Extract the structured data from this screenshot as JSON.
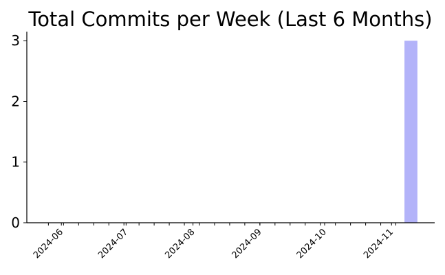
{
  "chart_data": {
    "type": "bar",
    "title": "Total Commits per Week (Last 6 Months)",
    "xlabel": "",
    "ylabel": "",
    "ylim": [
      0,
      3.15
    ],
    "y_ticks": [
      0,
      1,
      2,
      3
    ],
    "x_tick_labels": [
      "2024-06",
      "2024-07",
      "2024-08",
      "2024-09",
      "2024-10",
      "2024-11"
    ],
    "x_tick_dates": [
      "2024-06-01",
      "2024-07-01",
      "2024-08-01",
      "2024-09-01",
      "2024-10-01",
      "2024-11-01"
    ],
    "x_range": [
      "2024-05-16",
      "2024-11-21"
    ],
    "minor_tick_dates": [
      "2024-05-26",
      "2024-06-02",
      "2024-06-09",
      "2024-06-16",
      "2024-06-23",
      "2024-06-30",
      "2024-07-07",
      "2024-07-14",
      "2024-07-21",
      "2024-07-28",
      "2024-08-04",
      "2024-08-11",
      "2024-08-18",
      "2024-08-25",
      "2024-09-01",
      "2024-09-08",
      "2024-09-15",
      "2024-09-22",
      "2024-09-29",
      "2024-10-06",
      "2024-10-13",
      "2024-10-20",
      "2024-10-27",
      "2024-11-03"
    ],
    "series": [
      {
        "color": "#b3b3f9",
        "points": [
          {
            "week": "2024-11-10",
            "value": 3
          }
        ]
      }
    ],
    "grid": false,
    "legend": "none"
  }
}
